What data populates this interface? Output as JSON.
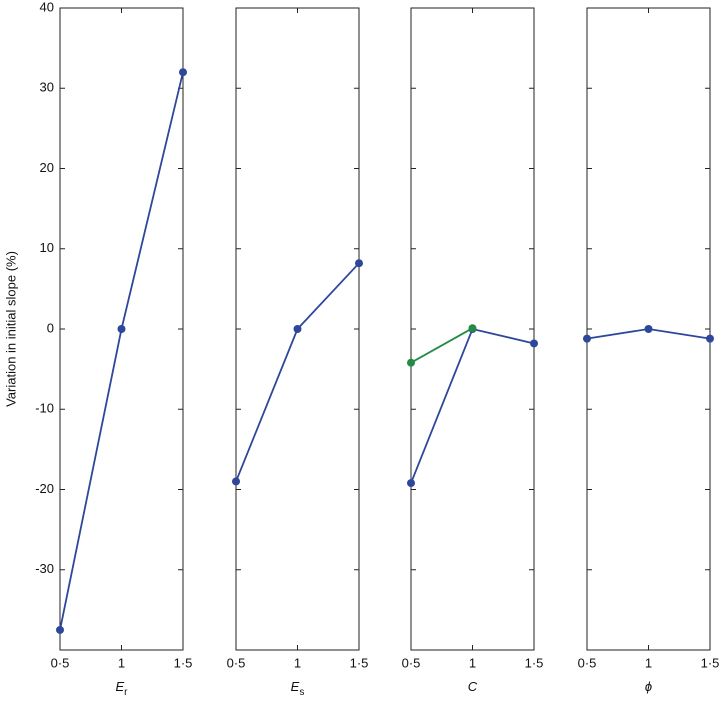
{
  "chart_data": [
    {
      "type": "line",
      "ylabel": "Variation in initial slope (%)",
      "xlabel": "E",
      "xlabel_sub": "r",
      "x": [
        0.5,
        1,
        1.5
      ],
      "xlim": [
        0.5,
        1.5
      ],
      "xticks": [
        {
          "value": 0.5,
          "label": "0·5"
        },
        1,
        {
          "value": 1.5,
          "label": "1·5"
        }
      ],
      "ylim": [
        -40,
        40
      ],
      "yticks": [
        -30,
        -20,
        -10,
        0,
        10,
        20,
        30,
        40
      ],
      "series": [
        {
          "color": "#2e479a",
          "values": [
            -37.5,
            0,
            32
          ]
        }
      ]
    },
    {
      "type": "line",
      "xlabel": "E",
      "xlabel_sub": "s",
      "x": [
        0.5,
        1,
        1.5
      ],
      "xlim": [
        0.5,
        1.5
      ],
      "xticks": [
        {
          "value": 0.5,
          "label": "0·5"
        },
        1,
        {
          "value": 1.5,
          "label": "1·5"
        }
      ],
      "ylim": [
        -40,
        40
      ],
      "yticks": [
        -30,
        -20,
        -10,
        0,
        10,
        20,
        30,
        40
      ],
      "series": [
        {
          "color": "#2e479a",
          "values": [
            -19,
            0,
            8.2
          ]
        }
      ]
    },
    {
      "type": "line",
      "xlabel": "C",
      "x": [
        0.5,
        1,
        1.5
      ],
      "xlim": [
        0.5,
        1.5
      ],
      "xticks": [
        {
          "value": 0.5,
          "label": "0·5"
        },
        1,
        {
          "value": 1.5,
          "label": "1·5"
        }
      ],
      "ylim": [
        -40,
        40
      ],
      "yticks": [
        -30,
        -20,
        -10,
        0,
        10,
        20,
        30,
        40
      ],
      "series": [
        {
          "color": "#2e479a",
          "values": [
            -19.2,
            0,
            -1.8
          ]
        },
        {
          "color": "#238b45",
          "values": [
            -4.2,
            0.1,
            null
          ]
        }
      ]
    },
    {
      "type": "line",
      "xlabel": "ϕ",
      "x": [
        0.5,
        1,
        1.5
      ],
      "xlim": [
        0.5,
        1.5
      ],
      "xticks": [
        {
          "value": 0.5,
          "label": "0·5"
        },
        1,
        {
          "value": 1.5,
          "label": "1·5"
        }
      ],
      "ylim": [
        -40,
        40
      ],
      "yticks": [
        -30,
        -20,
        -10,
        0,
        10,
        20,
        30,
        40
      ],
      "series": [
        {
          "color": "#2e479a",
          "values": [
            -1.2,
            0,
            -1.2
          ]
        }
      ]
    }
  ]
}
